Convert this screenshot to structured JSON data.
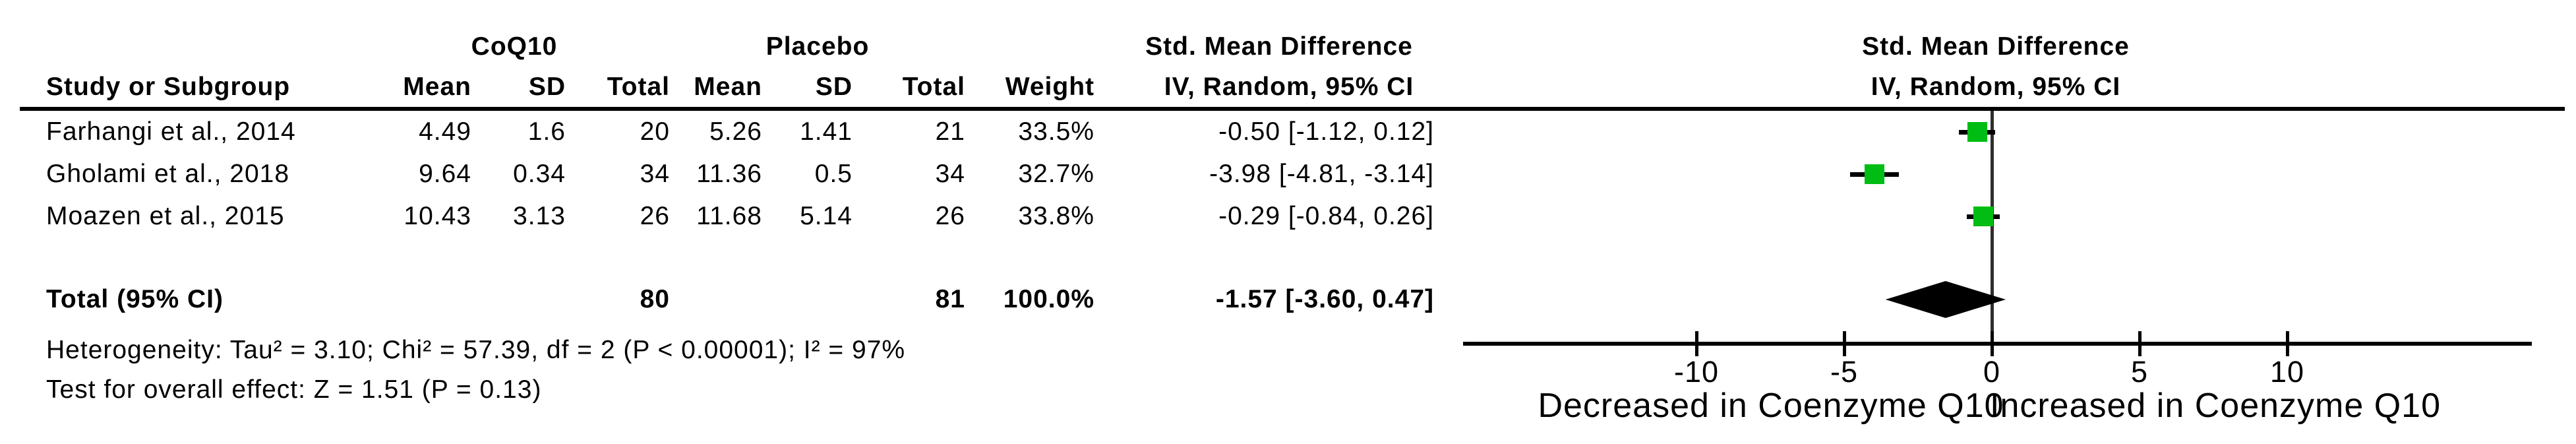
{
  "colors": {
    "square_green": "#00bd13",
    "line_black": "#000000",
    "background": "#ffffff"
  },
  "table": {
    "group1_header": "CoQ10",
    "group2_header": "Placebo",
    "effect_header_line1": "Std. Mean Difference",
    "effect_header_line2": "IV, Random, 95% CI",
    "columns": [
      "Study or Subgroup",
      "Mean",
      "SD",
      "Total",
      "Mean",
      "SD",
      "Total",
      "Weight",
      "IV, Random, 95% CI"
    ],
    "rows": [
      {
        "study": "Farhangi et al., 2014",
        "mean1": "4.49",
        "sd1": "1.6",
        "total1": "20",
        "mean2": "5.26",
        "sd2": "1.41",
        "total2": "21",
        "weight": "33.5%",
        "ci": "-0.50 [-1.12, 0.12]"
      },
      {
        "study": "Gholami et al., 2018",
        "mean1": "9.64",
        "sd1": "0.34",
        "total1": "34",
        "mean2": "11.36",
        "sd2": "0.5",
        "total2": "34",
        "weight": "32.7%",
        "ci": "-3.98 [-4.81, -3.14]"
      },
      {
        "study": "Moazen et al., 2015",
        "mean1": "10.43",
        "sd1": "3.13",
        "total1": "26",
        "mean2": "11.68",
        "sd2": "5.14",
        "total2": "26",
        "weight": "33.8%",
        "ci": "-0.29 [-0.84, 0.26]"
      }
    ],
    "total_row": {
      "label": "Total (95% CI)",
      "total1": "80",
      "total2": "81",
      "weight": "100.0%",
      "ci": "-1.57 [-3.60, 0.47]"
    },
    "heterogeneity": "Heterogeneity: Tau² = 3.10; Chi² = 57.39, df = 2 (P < 0.00001); I² = 97%",
    "overall_effect": "Test for overall effect: Z = 1.51 (P = 0.13)"
  },
  "chart_data": {
    "type": "forest",
    "title": "Std. Mean Difference",
    "subtitle": "IV, Random, 95% CI",
    "xlim": [
      -17.9,
      18.3
    ],
    "ticks": [
      -10,
      -5,
      0,
      5,
      10
    ],
    "grid": false,
    "axis_labels": {
      "left": "Decreased in Coenzyme Q10",
      "right": "Increased in Coenzyme Q10"
    },
    "studies": [
      {
        "name": "Farhangi et al., 2014",
        "est": -0.5,
        "lo": -1.12,
        "hi": 0.12,
        "weight_pct": 33.5
      },
      {
        "name": "Gholami et al., 2018",
        "est": -3.98,
        "lo": -4.81,
        "hi": -3.14,
        "weight_pct": 32.7
      },
      {
        "name": "Moazen et al., 2015",
        "est": -0.29,
        "lo": -0.84,
        "hi": 0.26,
        "weight_pct": 33.8
      }
    ],
    "overall": {
      "est": -1.57,
      "lo": -3.6,
      "hi": 0.47,
      "total1": 80,
      "total2": 81,
      "weight_pct": 100.0
    }
  }
}
